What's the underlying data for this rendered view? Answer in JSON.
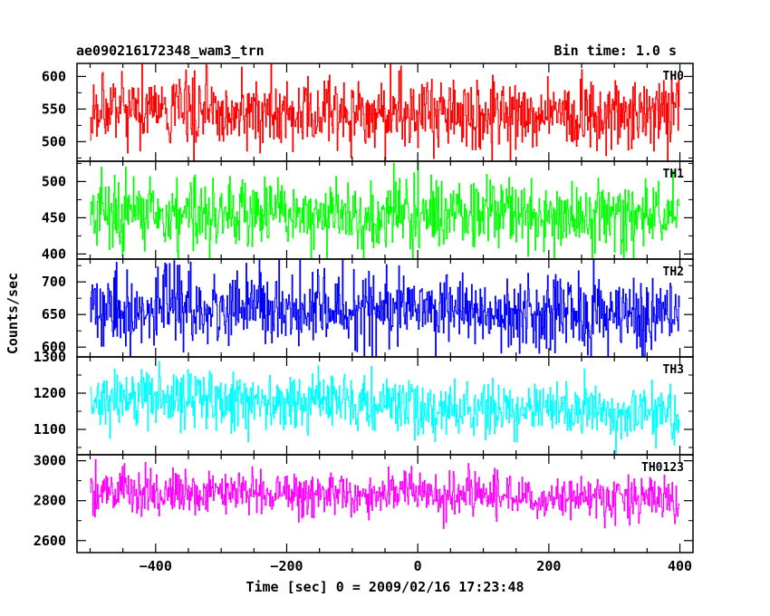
{
  "header": {
    "title": "ae090216172348_wam3_trn",
    "bin_time": "Bin time: 1.0 s"
  },
  "chart_data": {
    "type": "line",
    "xlabel": "Time [sec] 0 = 2009/02/16 17:23:48",
    "ylabel": "Counts/sec",
    "xlim": [
      -520,
      420
    ],
    "x_range": [
      -499.5,
      399.5
    ],
    "x_step": 1.0,
    "x_ticks": [
      -400,
      -200,
      0,
      200,
      400
    ],
    "x_tick_labels": [
      "−400",
      "−200",
      "0",
      "200",
      "400"
    ],
    "grid": false,
    "panels": [
      {
        "label": "TH0",
        "color": "#ff0000",
        "ylim": [
          470,
          620
        ],
        "y_ticks": [
          500,
          550,
          600
        ],
        "y_tick_labels": [
          "500",
          "550",
          "600"
        ],
        "mean": 545,
        "sd": 28,
        "trend": [
          [
            -500,
            549
          ],
          [
            -300,
            546
          ],
          [
            0,
            544
          ],
          [
            200,
            543
          ],
          [
            400,
            540
          ]
        ]
      },
      {
        "label": "TH1",
        "color": "#00ff00",
        "ylim": [
          393,
          528
        ],
        "y_ticks": [
          400,
          450,
          500
        ],
        "y_tick_labels": [
          "400",
          "450",
          "500"
        ],
        "mean": 455,
        "sd": 25,
        "trend": [
          [
            -500,
            455
          ],
          [
            -250,
            456
          ],
          [
            0,
            454
          ],
          [
            200,
            455
          ],
          [
            400,
            453
          ]
        ]
      },
      {
        "label": "TH2",
        "color": "#0000ff",
        "ylim": [
          585,
          735
        ],
        "y_ticks": [
          600,
          650,
          700
        ],
        "y_tick_labels": [
          "600",
          "650",
          "700"
        ],
        "mean": 655,
        "sd": 28,
        "trend": [
          [
            -500,
            652
          ],
          [
            -300,
            660
          ],
          [
            -100,
            658
          ],
          [
            100,
            655
          ],
          [
            300,
            650
          ],
          [
            400,
            650
          ]
        ]
      },
      {
        "label": "TH3",
        "color": "#00ffff",
        "ylim": [
          1030,
          1300
        ],
        "y_ticks": [
          1100,
          1200,
          1300
        ],
        "y_tick_labels": [
          "1100",
          "1200",
          "1300"
        ],
        "mean": 1170,
        "sd": 38,
        "trend": [
          [
            -500,
            1182
          ],
          [
            -300,
            1180
          ],
          [
            -100,
            1175
          ],
          [
            0,
            1160
          ],
          [
            200,
            1160
          ],
          [
            400,
            1145
          ]
        ]
      },
      {
        "label": "TH0123",
        "color": "#ff00ff",
        "ylim": [
          2540,
          3030
        ],
        "y_ticks": [
          2600,
          2800,
          3000
        ],
        "y_tick_labels": [
          "2600",
          "2800",
          "3000"
        ],
        "mean": 2840,
        "sd": 55,
        "trend": [
          [
            -500,
            2850
          ],
          [
            -300,
            2842
          ],
          [
            -100,
            2835
          ],
          [
            100,
            2830
          ],
          [
            300,
            2810
          ],
          [
            400,
            2790
          ]
        ]
      }
    ]
  }
}
